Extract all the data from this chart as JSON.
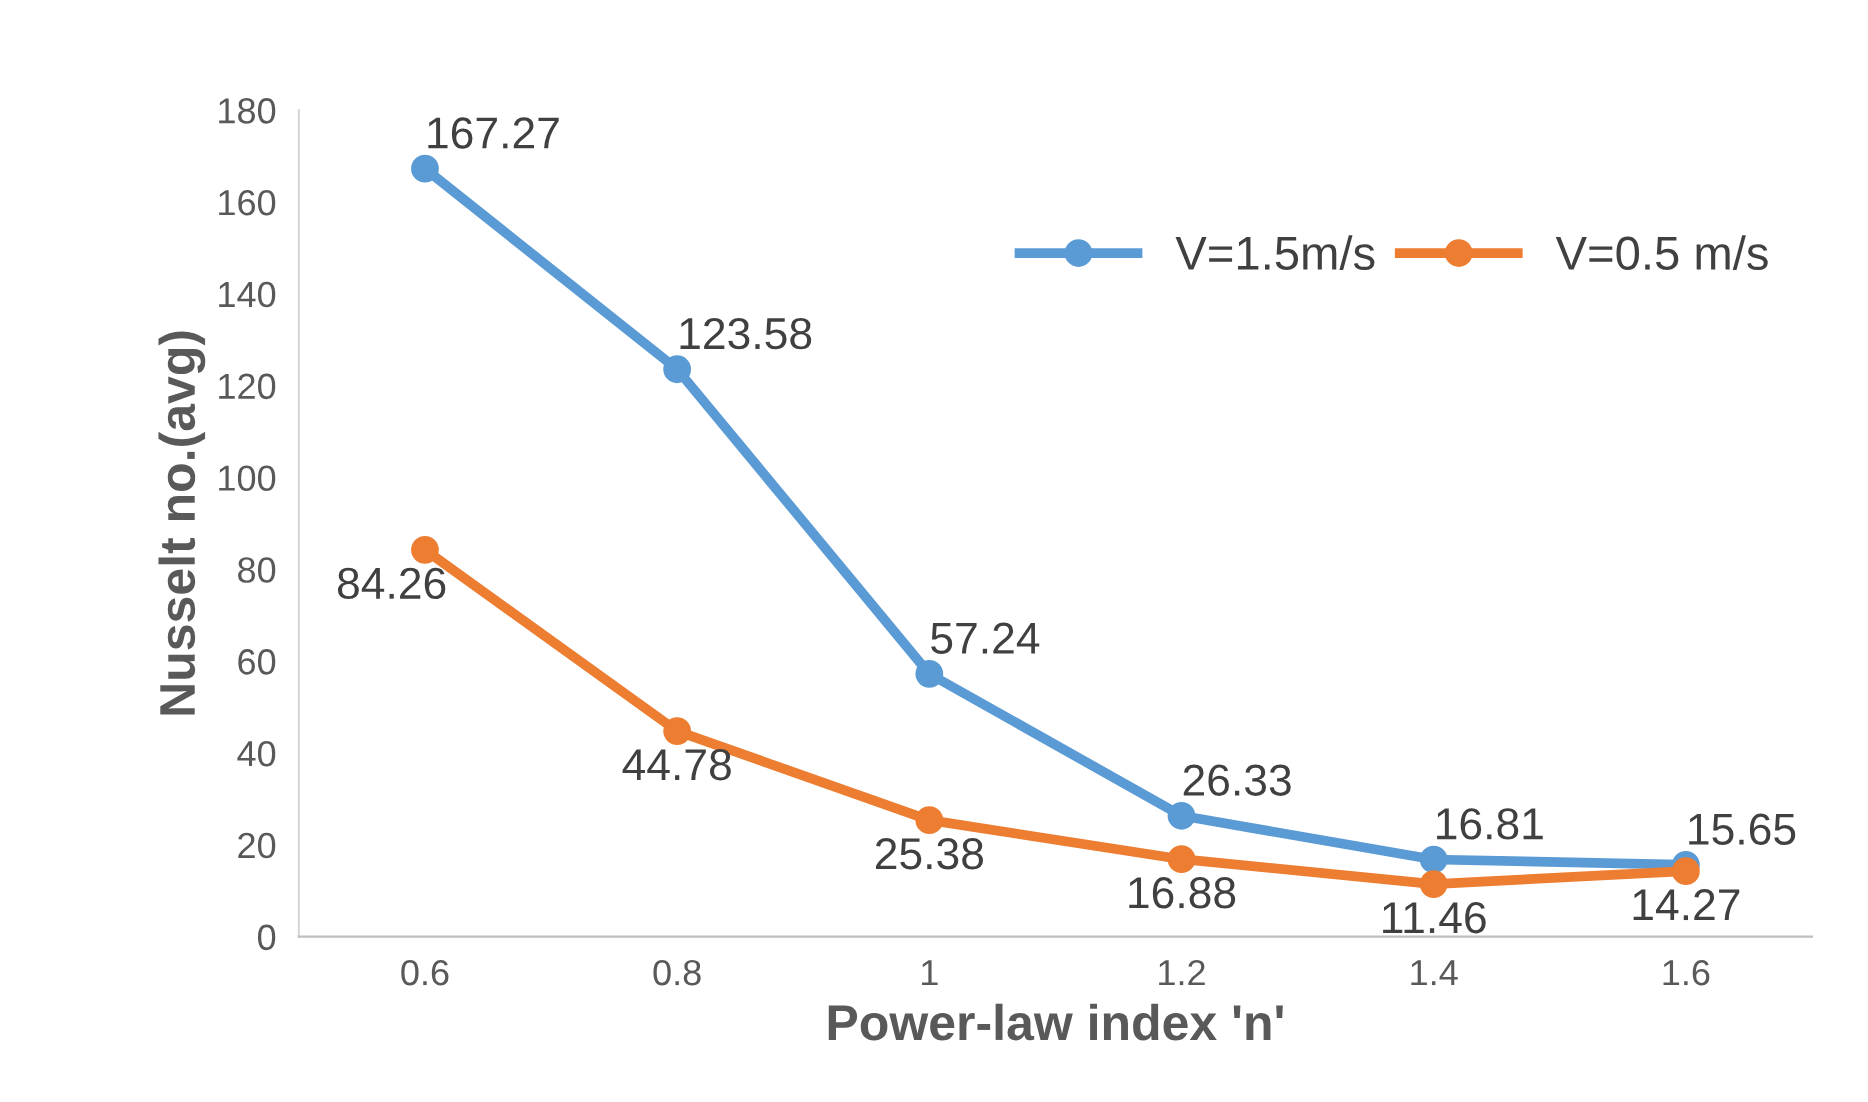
{
  "chart_data": {
    "type": "line",
    "xlabel": "Power-law index 'n'",
    "ylabel": "Nusselt no.(avg)",
    "categories": [
      "0.6",
      "0.8",
      "1",
      "1.2",
      "1.4",
      "1.6"
    ],
    "series": [
      {
        "name": "V=1.5m/s",
        "color": "#5b9bd5",
        "values": [
          167.27,
          123.58,
          57.24,
          26.33,
          16.81,
          15.65
        ]
      },
      {
        "name": "V=0.5 m/s",
        "color": "#ed7d31",
        "values": [
          84.26,
          44.78,
          25.38,
          16.88,
          11.46,
          14.27
        ]
      }
    ],
    "ylim": [
      0,
      180
    ],
    "yticks": [
      0,
      20,
      40,
      60,
      80,
      100,
      120,
      140,
      160,
      180
    ],
    "grid": false,
    "legend": "top right",
    "marker": "circle",
    "line_style": "solid",
    "data_labels": true
  }
}
